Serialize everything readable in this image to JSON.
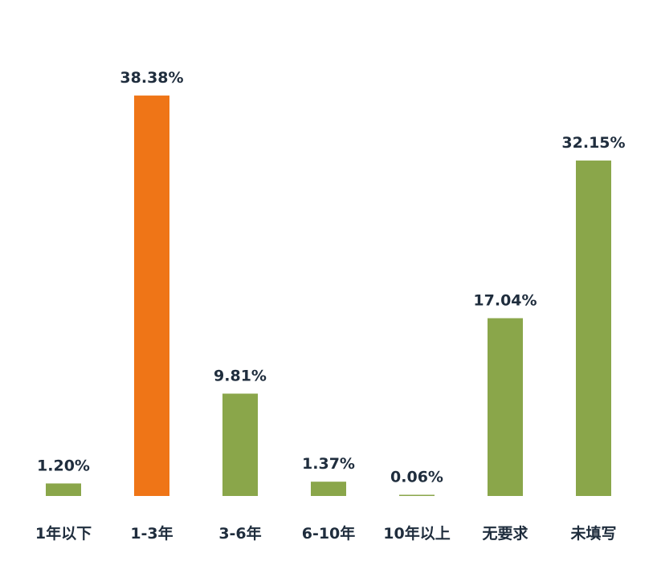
{
  "chart_data": {
    "type": "bar",
    "title": "",
    "xlabel": "",
    "ylabel": "",
    "categories": [
      "1年以下",
      "1-3年",
      "3-6年",
      "6-10年",
      "10年以上",
      "无要求",
      "未填写"
    ],
    "values": [
      1.2,
      38.38,
      9.81,
      1.37,
      0.06,
      17.04,
      32.15
    ],
    "value_labels": [
      "1.20%",
      "38.38%",
      "9.81%",
      "1.37%",
      "0.06%",
      "17.04%",
      "32.15%"
    ],
    "ylim": [
      0,
      40
    ],
    "grid": false,
    "legend": "none",
    "highlight_index": 1,
    "colors": {
      "bar": "#8aa64a",
      "highlight": "#ef7517",
      "text": "#1f2d3d"
    }
  }
}
